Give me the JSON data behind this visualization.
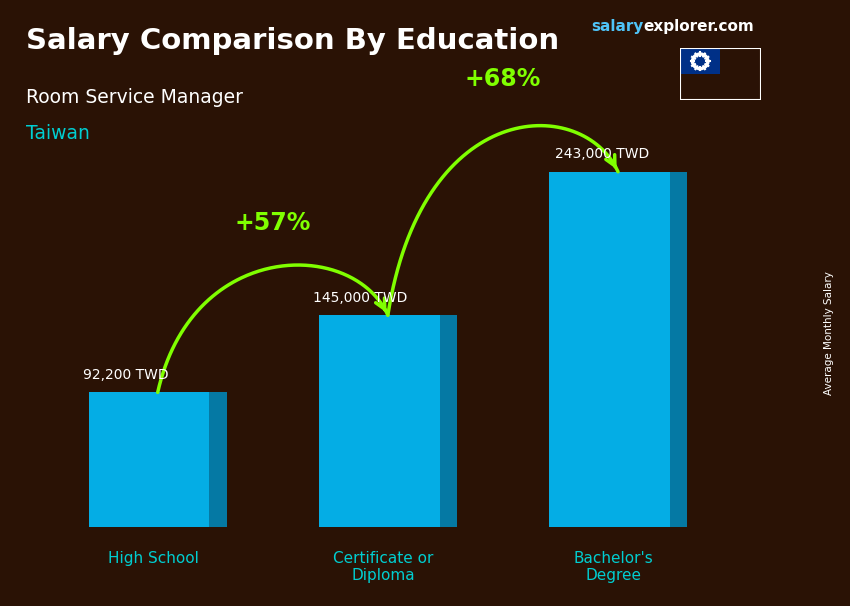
{
  "title": "Salary Comparison By Education",
  "subtitle1": "Room Service Manager",
  "subtitle2": "Taiwan",
  "site_salary": "salary",
  "site_rest": "explorer.com",
  "categories": [
    "High School",
    "Certificate or\nDiploma",
    "Bachelor's\nDegree"
  ],
  "values": [
    92200,
    145000,
    243000
  ],
  "value_labels": [
    "92,200 TWD",
    "145,000 TWD",
    "243,000 TWD"
  ],
  "pct_labels": [
    "+57%",
    "+68%"
  ],
  "bar_color_main": "#00BFFF",
  "bar_color_side": "#0088BB",
  "bar_color_top": "#55DDFF",
  "arrow_color": "#80FF00",
  "title_color": "#FFFFFF",
  "cat_label_color": "#00CED1",
  "ylabel": "Average Monthly Salary",
  "bg_color": "#2A1205",
  "bar_width": 0.42,
  "bar_positions": [
    0.3,
    1.1,
    1.9
  ],
  "xlim": [
    -0.1,
    2.5
  ],
  "ylim_max": 290000
}
